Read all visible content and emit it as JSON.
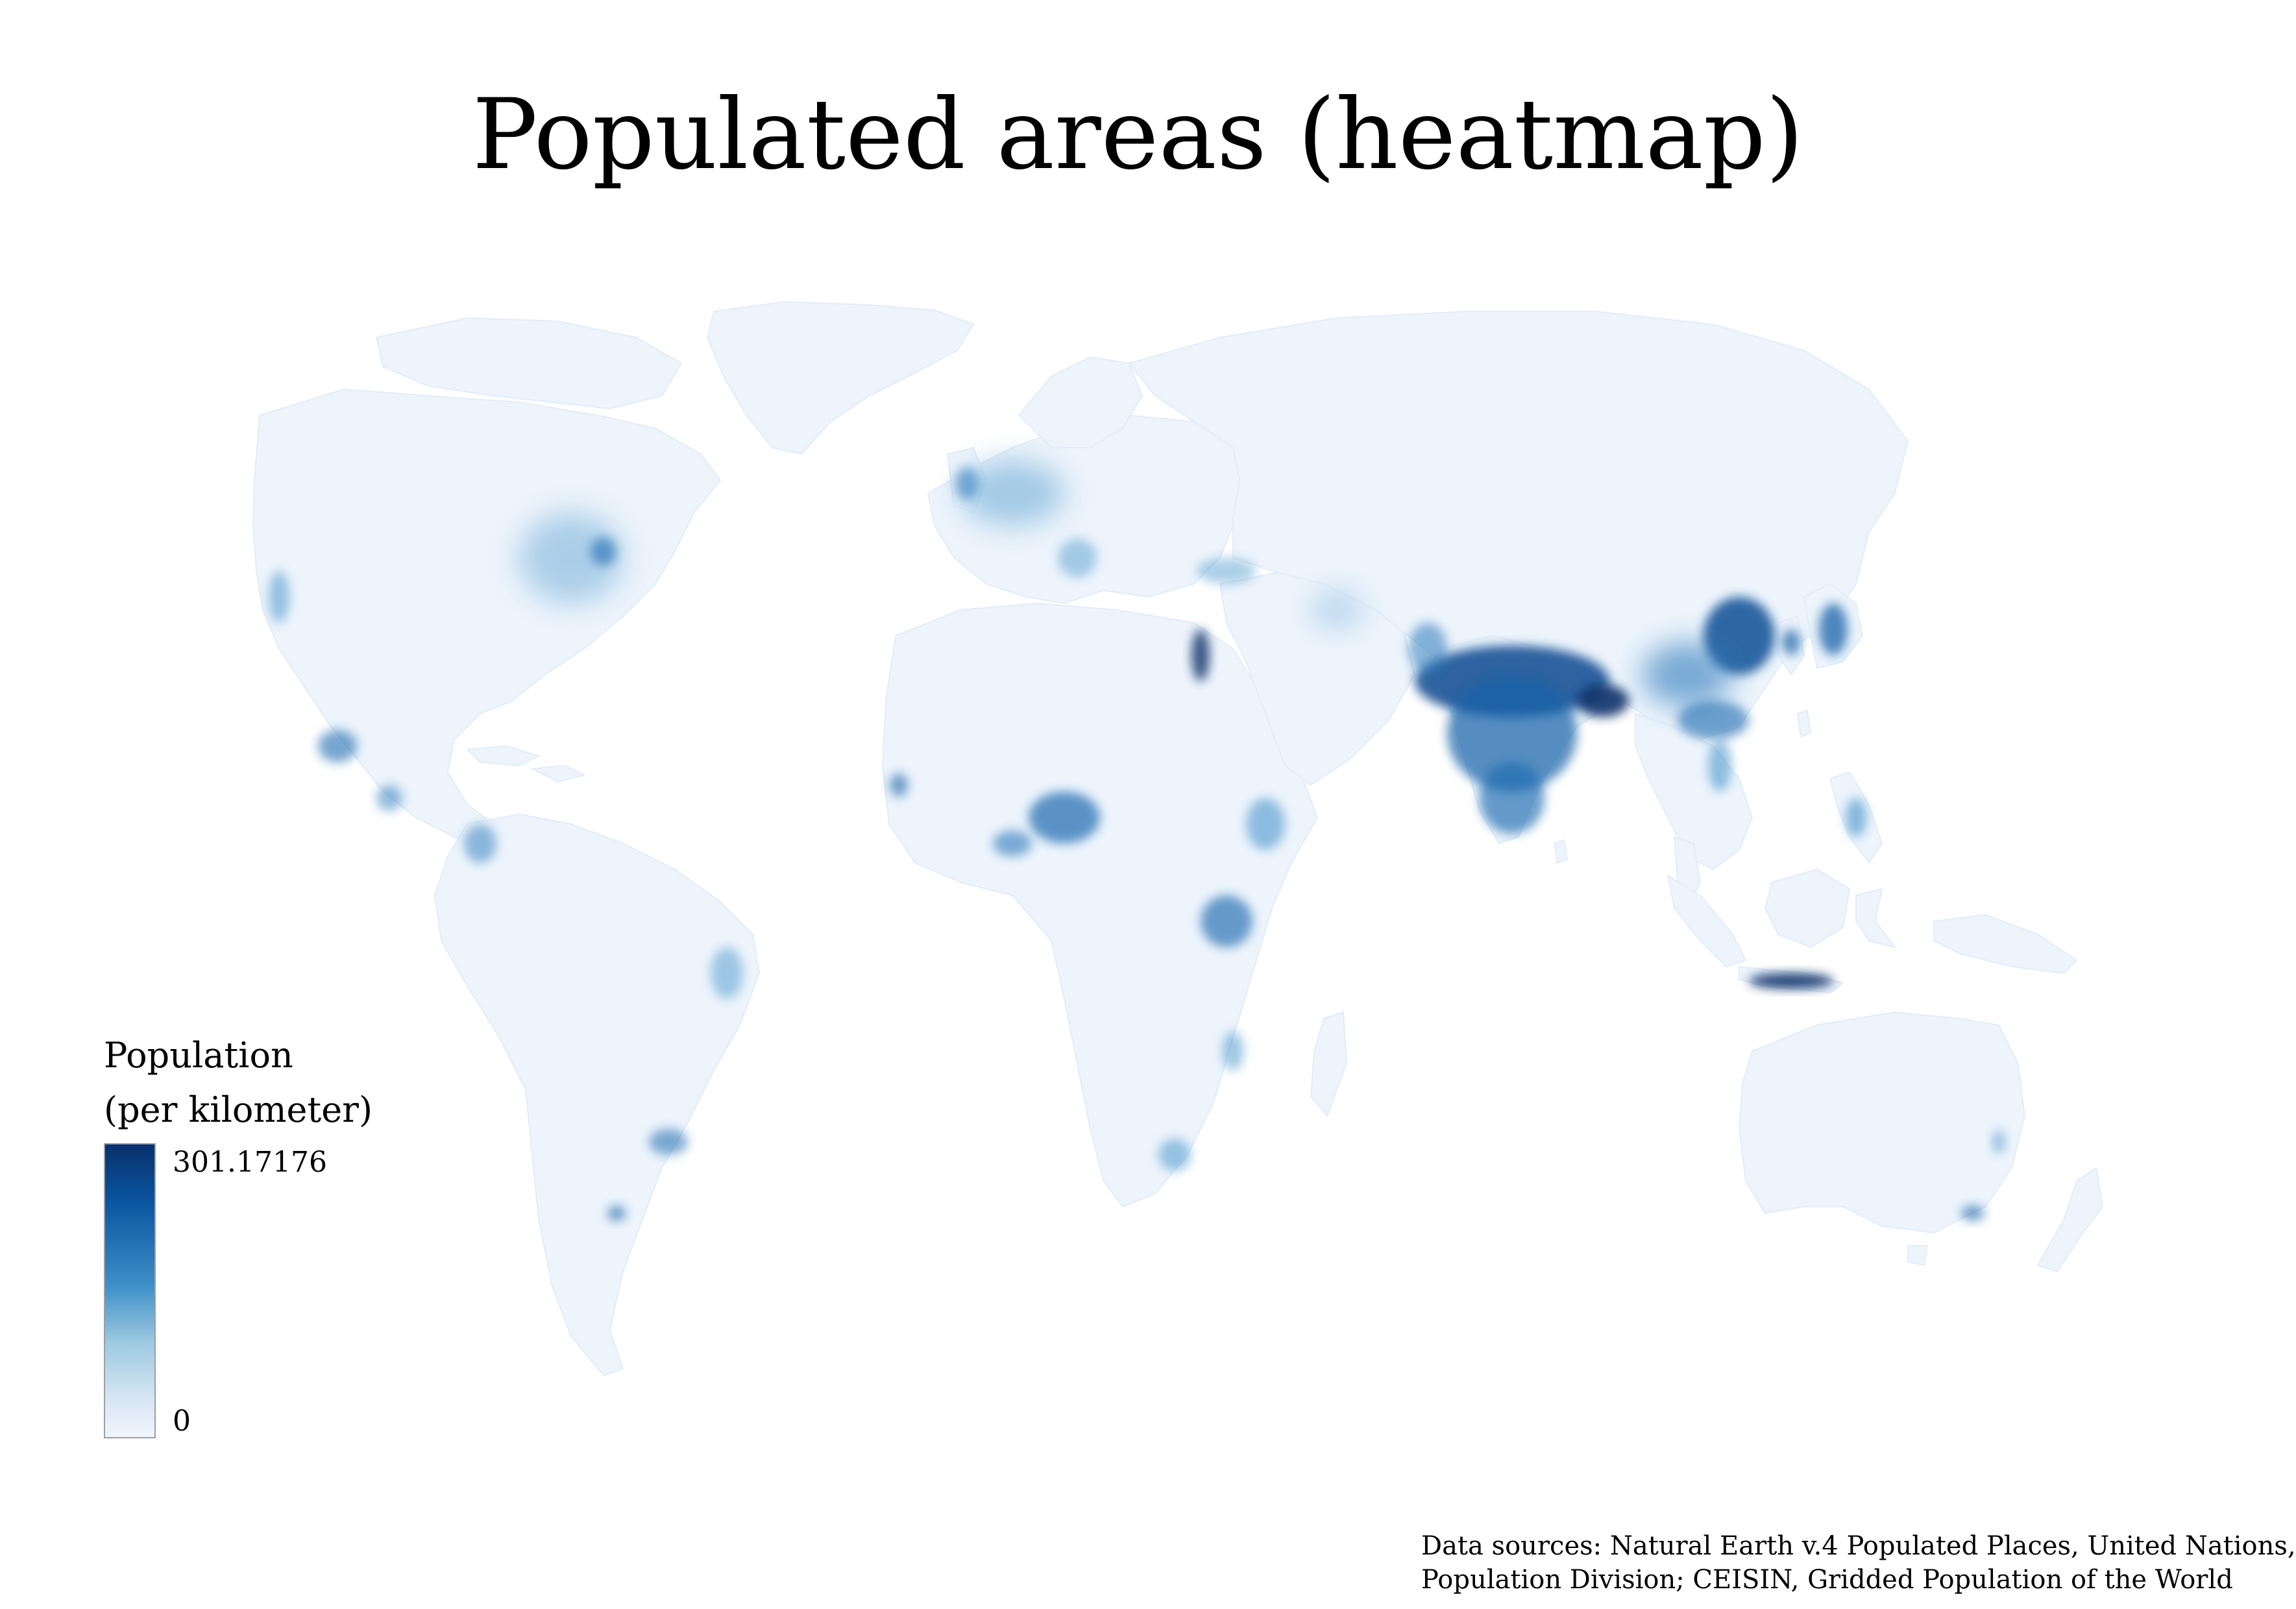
{
  "title": "Populated areas (heatmap)",
  "legend": {
    "title_line1": "Population",
    "title_line2": "(per kilometer)",
    "max_label": "301.17176",
    "min_label": "0",
    "max_value": 301.17176,
    "min_value": 0,
    "color_low": "#f0f5fc",
    "color_high": "#08306b"
  },
  "colors": {
    "land": "#edf4fc",
    "background": "#ffffff",
    "accent": "#08306b"
  },
  "source": {
    "line1": "Data sources: Natural Earth v.4 Populated Places, United Nations,",
    "line2": "Population Division; CEISIN,  Gridded Population of the World"
  }
}
